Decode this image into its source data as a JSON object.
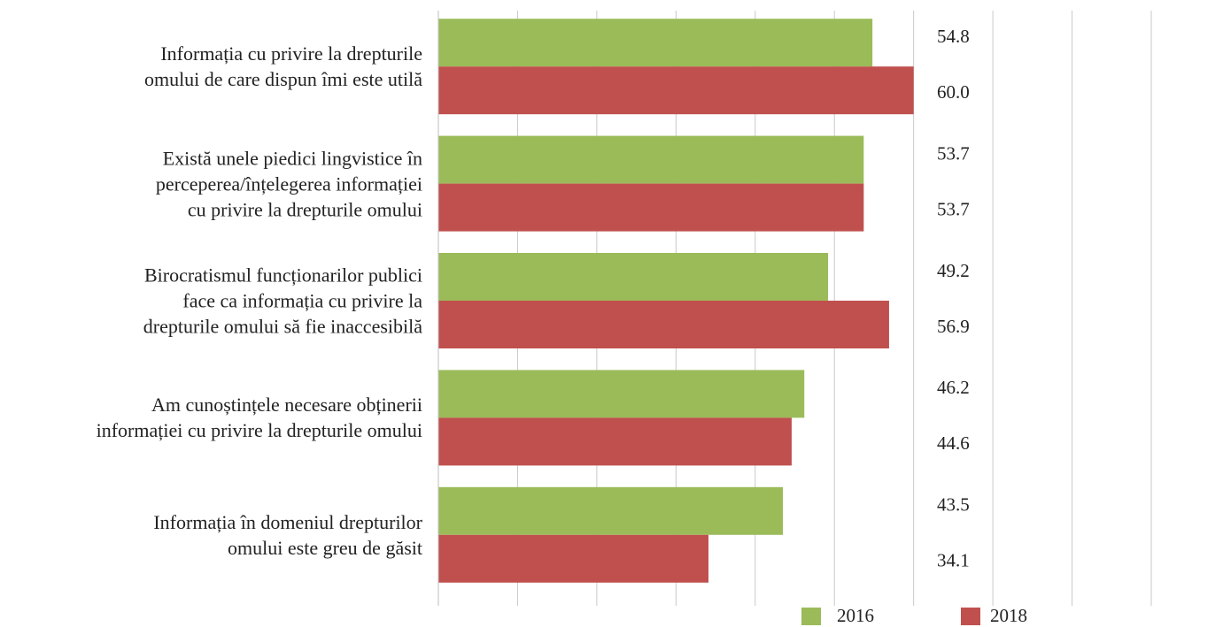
{
  "chart_data": {
    "type": "bar",
    "orientation": "horizontal",
    "categories": [
      "Informația cu privire la drepturile\nomului de care dispun îmi este utilă",
      "Există unele piedici lingvistice în\nperceperea/înțelegerea informației\ncu privire la drepturile omului",
      "Birocratismul funcționarilor publici\nface ca informația cu privire la\ndrepturile omului să fie inaccesibilă",
      "Am cunoștințele necesare obținerii\ninformației cu privire la drepturile  omului",
      "Informația în domeniul drepturilor\nomului este greu de găsit"
    ],
    "series": [
      {
        "name": "2016",
        "color": "#9bbb59",
        "values": [
          54.8,
          53.7,
          49.2,
          46.2,
          43.5
        ],
        "value_labels": [
          "54.8",
          "53.7",
          "49.2",
          "46.2",
          "43.5"
        ]
      },
      {
        "name": "2018",
        "color": "#c0504d",
        "values": [
          60.0,
          53.7,
          56.9,
          44.6,
          34.1
        ],
        "value_labels": [
          "60.0",
          "53.7",
          "56.9",
          "44.6",
          "34.1"
        ]
      }
    ],
    "xlim": [
      0,
      90
    ],
    "xticks": [
      0,
      10,
      20,
      30,
      40,
      50,
      60,
      70,
      80,
      90
    ],
    "grid": true,
    "legend": "bottom"
  }
}
